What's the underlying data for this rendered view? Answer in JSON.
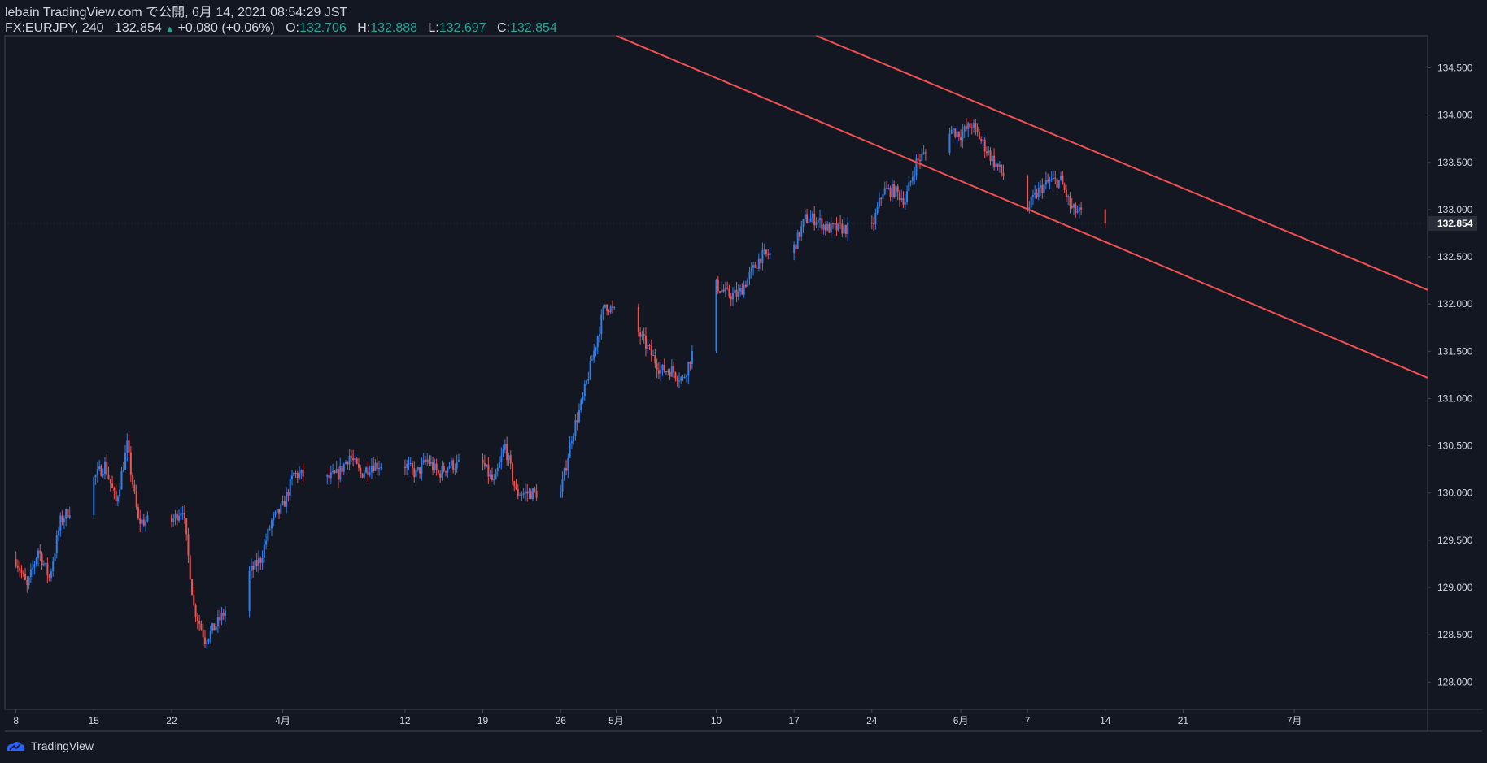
{
  "header": {
    "line1": "lebain TradingView.com で公開, 6月 14, 2021 08:54:29 JST",
    "symbol": "FX:EURJPY, 240",
    "last": "132.854",
    "arrow": "▲",
    "change": "+0.080 (+0.06%)",
    "o_label": "O:",
    "o_val": "132.706",
    "h_label": "H:",
    "h_val": "132.888",
    "l_label": "L:",
    "l_val": "132.697",
    "c_label": "C:",
    "c_val": "132.854"
  },
  "footer": {
    "brand": "TradingView",
    "logo_icon": "tradingview-logo-icon"
  },
  "colors": {
    "background": "#131722",
    "up": "#2f80ed",
    "down": "#ef5350",
    "trendline": "#f05050",
    "axis_text": "#d1d4dc",
    "accent": "#26a69a"
  },
  "chart_data": {
    "type": "candlestick",
    "symbol": "FX:EURJPY",
    "timeframe": "240",
    "y_axis": {
      "ticks": [
        128.0,
        128.5,
        129.0,
        129.5,
        130.0,
        130.5,
        131.0,
        131.5,
        132.0,
        132.5,
        133.0,
        133.5,
        134.0,
        134.5
      ],
      "tick_labels": [
        "128.000",
        "128.500",
        "129.000",
        "129.500",
        "130.000",
        "130.500",
        "131.000",
        "131.500",
        "132.000",
        "132.500",
        "133.000",
        "133.500",
        "134.000",
        "134.500"
      ],
      "range": [
        127.71,
        134.84
      ],
      "current_price_label": "132.854"
    },
    "x_axis": {
      "ticks": [
        {
          "date": "2021-03-08",
          "label": "8"
        },
        {
          "date": "2021-03-15",
          "label": "15"
        },
        {
          "date": "2021-03-22",
          "label": "22"
        },
        {
          "date": "2021-04-01",
          "label": "4月"
        },
        {
          "date": "2021-04-12",
          "label": "12"
        },
        {
          "date": "2021-04-19",
          "label": "19"
        },
        {
          "date": "2021-04-26",
          "label": "26"
        },
        {
          "date": "2021-05-01",
          "label": "5月"
        },
        {
          "date": "2021-05-10",
          "label": "10"
        },
        {
          "date": "2021-05-17",
          "label": "17"
        },
        {
          "date": "2021-05-24",
          "label": "24"
        },
        {
          "date": "2021-06-01",
          "label": "6月"
        },
        {
          "date": "2021-06-07",
          "label": "7"
        },
        {
          "date": "2021-06-14",
          "label": "14"
        },
        {
          "date": "2021-06-21",
          "label": "21"
        },
        {
          "date": "2021-07-01",
          "label": "7月"
        }
      ],
      "range": [
        "2021-03-07",
        "2021-07-13"
      ]
    },
    "price_path": [
      [
        "2021-03-08",
        129.3
      ],
      [
        "2021-03-09",
        129.0
      ],
      [
        "2021-03-10",
        129.4
      ],
      [
        "2021-03-11",
        129.1
      ],
      [
        "2021-03-12",
        129.7
      ],
      [
        "2021-03-15",
        130.15
      ],
      [
        "2021-03-16",
        130.3
      ],
      [
        "2021-03-17",
        129.9
      ],
      [
        "2021-03-18",
        130.5
      ],
      [
        "2021-03-19",
        129.7
      ],
      [
        "2021-03-22",
        129.7
      ],
      [
        "2021-03-23",
        129.85
      ],
      [
        "2021-03-24",
        128.8
      ],
      [
        "2021-03-25",
        128.45
      ],
      [
        "2021-03-26",
        128.6
      ],
      [
        "2021-03-29",
        129.15
      ],
      [
        "2021-03-30",
        129.3
      ],
      [
        "2021-03-31",
        129.7
      ],
      [
        "2021-04-01",
        129.85
      ],
      [
        "2021-04-02",
        130.2
      ],
      [
        "2021-04-05",
        130.15
      ],
      [
        "2021-04-06",
        130.2
      ],
      [
        "2021-04-07",
        130.4
      ],
      [
        "2021-04-08",
        130.2
      ],
      [
        "2021-04-09",
        130.3
      ],
      [
        "2021-04-12",
        130.3
      ],
      [
        "2021-04-13",
        130.2
      ],
      [
        "2021-04-14",
        130.35
      ],
      [
        "2021-04-15",
        130.2
      ],
      [
        "2021-04-16",
        130.3
      ],
      [
        "2021-04-19",
        130.3
      ],
      [
        "2021-04-20",
        130.1
      ],
      [
        "2021-04-21",
        130.5
      ],
      [
        "2021-04-22",
        130.0
      ],
      [
        "2021-04-23",
        130.0
      ],
      [
        "2021-04-26",
        130.0
      ],
      [
        "2021-04-27",
        130.6
      ],
      [
        "2021-04-28",
        131.0
      ],
      [
        "2021-04-29",
        131.5
      ],
      [
        "2021-04-30",
        132.0
      ],
      [
        "2021-05-03",
        131.7
      ],
      [
        "2021-05-04",
        131.5
      ],
      [
        "2021-05-05",
        131.3
      ],
      [
        "2021-05-06",
        131.3
      ],
      [
        "2021-05-07",
        131.2
      ],
      [
        "2021-05-10",
        132.2
      ],
      [
        "2021-05-11",
        132.1
      ],
      [
        "2021-05-12",
        132.1
      ],
      [
        "2021-05-13",
        132.3
      ],
      [
        "2021-05-14",
        132.5
      ],
      [
        "2021-05-17",
        132.6
      ],
      [
        "2021-05-18",
        132.9
      ],
      [
        "2021-05-19",
        132.9
      ],
      [
        "2021-05-20",
        132.8
      ],
      [
        "2021-05-21",
        132.8
      ],
      [
        "2021-05-24",
        132.8
      ],
      [
        "2021-05-25",
        133.2
      ],
      [
        "2021-05-26",
        133.2
      ],
      [
        "2021-05-27",
        133.1
      ],
      [
        "2021-05-28",
        133.5
      ],
      [
        "2021-05-31",
        133.85
      ],
      [
        "2021-06-01",
        133.8
      ],
      [
        "2021-06-02",
        133.9
      ],
      [
        "2021-06-03",
        133.7
      ],
      [
        "2021-06-04",
        133.5
      ],
      [
        "2021-06-07",
        133.0
      ],
      [
        "2021-06-08",
        133.2
      ],
      [
        "2021-06-09",
        133.3
      ],
      [
        "2021-06-10",
        133.3
      ],
      [
        "2021-06-11",
        133.0
      ],
      [
        "2021-06-14",
        132.85
      ]
    ],
    "trendlines": [
      {
        "name": "channel-upper",
        "from": [
          "2021-05-19",
          134.84
        ],
        "to": [
          "2021-07-13",
          132.15
        ]
      },
      {
        "name": "channel-lower",
        "from": [
          "2021-05-01",
          134.84
        ],
        "to": [
          "2021-07-13",
          131.22
        ]
      }
    ]
  }
}
